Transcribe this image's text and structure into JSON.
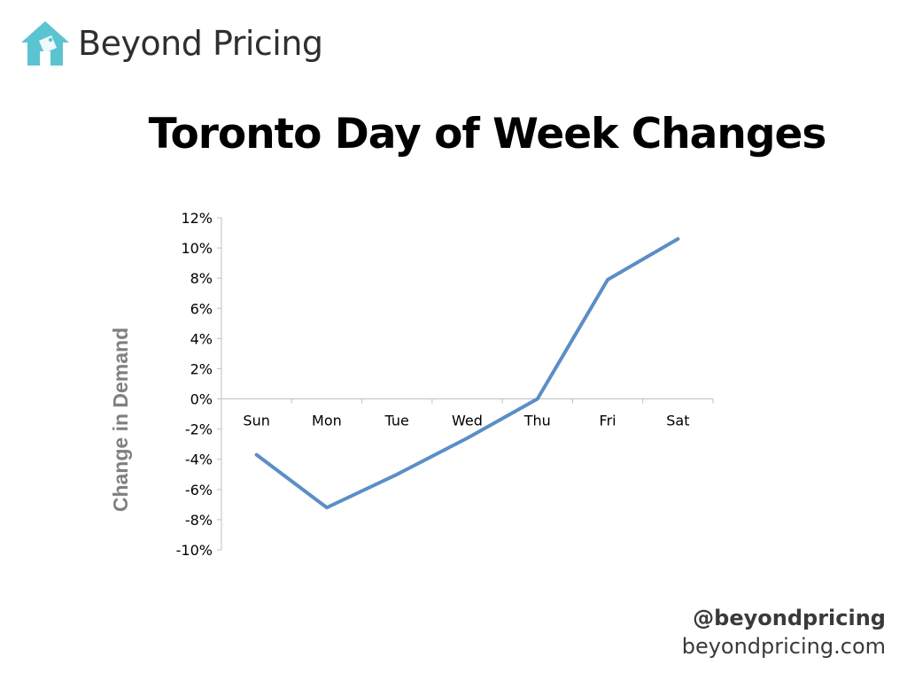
{
  "brand": {
    "name": "Beyond Pricing",
    "icon": "house-tag-icon",
    "color": "#5bc4d1"
  },
  "footer": {
    "handle": "@beyondpricing",
    "site": "beyondpricing.com"
  },
  "chart_data": {
    "type": "line",
    "title": "Toronto Day of Week Changes",
    "xlabel": "",
    "ylabel": "Change in Demand",
    "categories": [
      "Sun",
      "Mon",
      "Tue",
      "Wed",
      "Thu",
      "Fri",
      "Sat"
    ],
    "series": [
      {
        "values": [
          -3.7,
          -7.2,
          -5.0,
          -2.6,
          0.0,
          7.9,
          10.6
        ],
        "color": "#5b8ec6"
      }
    ],
    "ylim": [
      -10,
      12
    ],
    "yticks": [
      -10,
      -8,
      -6,
      -4,
      -2,
      0,
      2,
      4,
      6,
      8,
      10,
      12
    ],
    "ytick_format": "percent",
    "grid": false,
    "legend": "none"
  }
}
